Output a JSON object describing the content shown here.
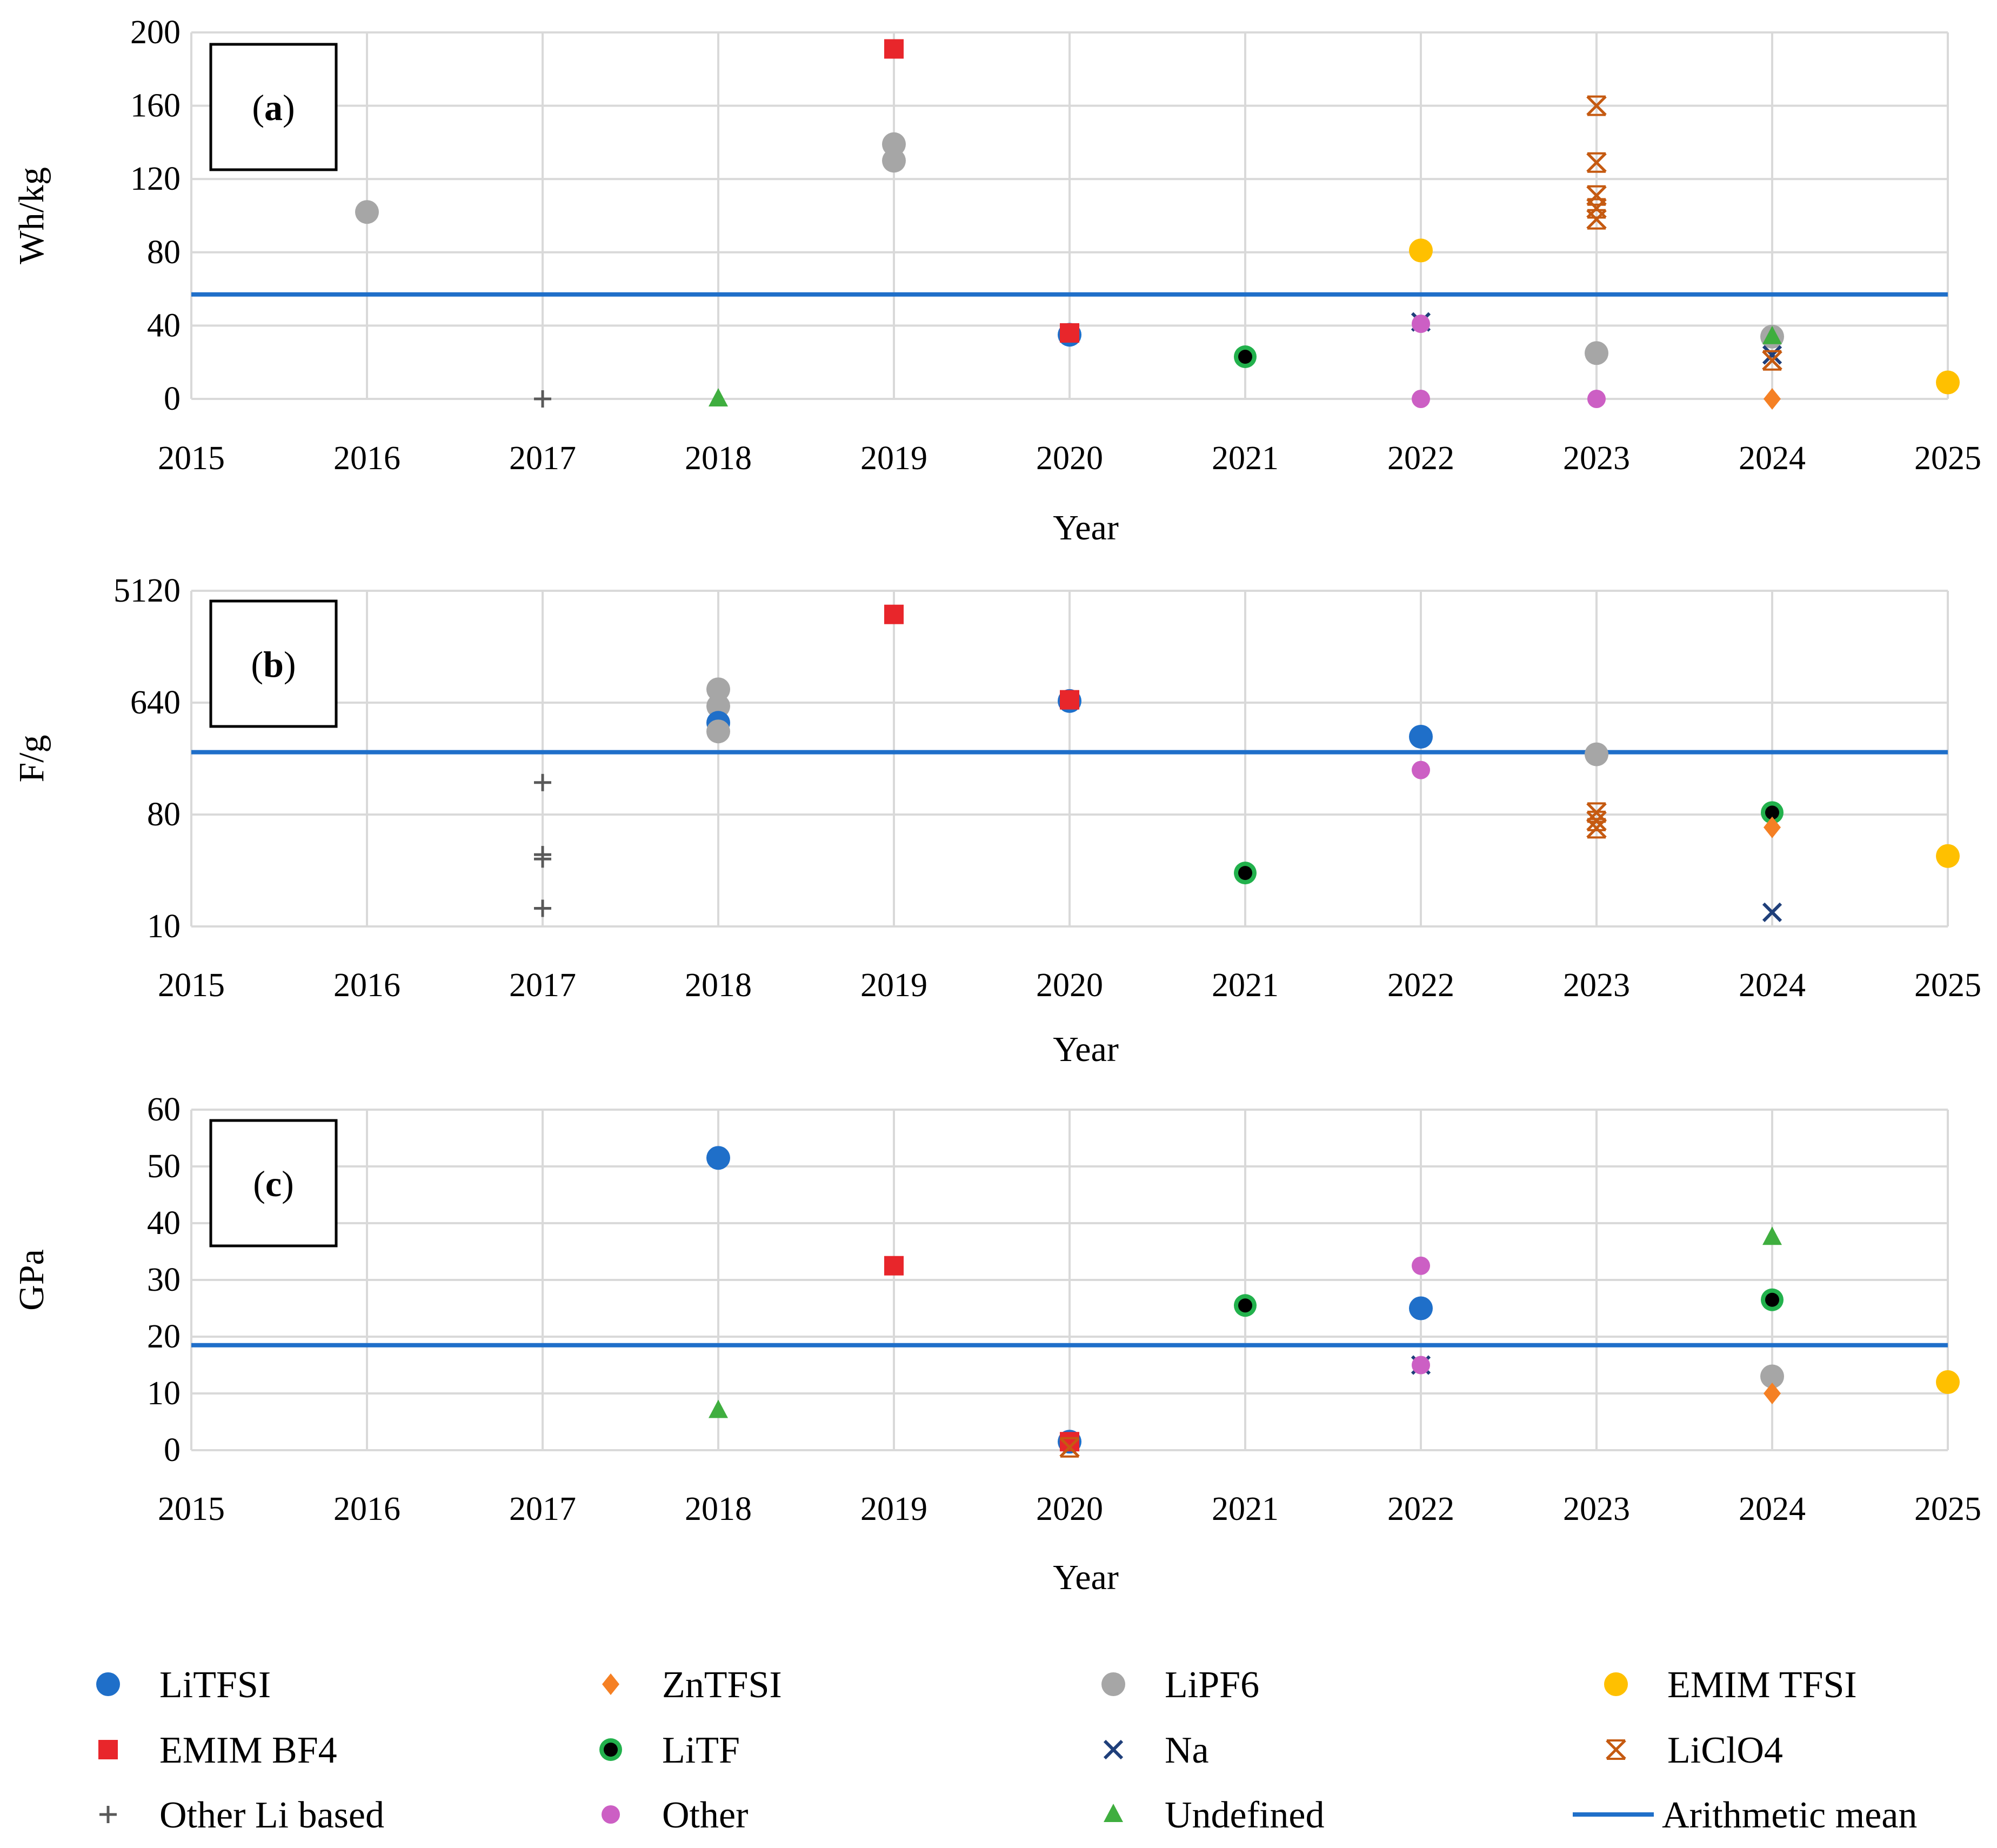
{
  "figure": {
    "mean_color": "#1f6fc9",
    "series": [
      {
        "key": "litfsi",
        "name": "LiTFSI",
        "marker": "circle",
        "color": "#1f6fc9"
      },
      {
        "key": "zntfsi",
        "name": "ZnTFSI",
        "marker": "diamond",
        "color": "#f58024"
      },
      {
        "key": "lipf6",
        "name": "LiPF6",
        "marker": "circle",
        "color": "#a6a6a6"
      },
      {
        "key": "emimtfsi",
        "name": "EMIM TFSI",
        "marker": "circle",
        "color": "#ffc000"
      },
      {
        "key": "emimbf4",
        "name": "EMIM BF4",
        "marker": "square",
        "color": "#e8262b"
      },
      {
        "key": "litf",
        "name": "LiTF",
        "marker": "circle-black",
        "color": "#22b14c"
      },
      {
        "key": "na",
        "name": "Na",
        "marker": "x",
        "color": "#1f3f7a"
      },
      {
        "key": "liclo4",
        "name": "LiClO4",
        "marker": "star",
        "color": "#c55a11"
      },
      {
        "key": "otherli",
        "name": "Other Li based",
        "marker": "plus",
        "color": "#595959"
      },
      {
        "key": "other",
        "name": "Other",
        "marker": "circle-small",
        "color": "#cc5fc4"
      },
      {
        "key": "undef",
        "name": "Undefined",
        "marker": "triangle",
        "color": "#3fae3f"
      }
    ],
    "legend_mean_label": "Arithmetic mean"
  },
  "chart_data": [
    {
      "panel_label_open": "(",
      "panel_label_letter": "a",
      "panel_label_close": ")",
      "type": "scatter",
      "xlabel": "Year",
      "ylabel": "Wh/kg",
      "xlim": [
        2015,
        2025
      ],
      "ylim": [
        0,
        200
      ],
      "yscale": "linear",
      "xticks": [
        "2015",
        "2016",
        "2017",
        "2018",
        "2019",
        "2020",
        "2021",
        "2022",
        "2023",
        "2024",
        "2025"
      ],
      "yticks": [
        0,
        40,
        80,
        120,
        160,
        200
      ],
      "ytick_labels": [
        "0",
        "40",
        "80",
        "120",
        "160",
        "200"
      ],
      "mean": 57,
      "points": [
        {
          "s": "lipf6",
          "x": 2016,
          "y": 102
        },
        {
          "s": "otherli",
          "x": 2017,
          "y": 0
        },
        {
          "s": "undef",
          "x": 2018,
          "y": 0
        },
        {
          "s": "emimbf4",
          "x": 2019,
          "y": 191
        },
        {
          "s": "lipf6",
          "x": 2019,
          "y": 139
        },
        {
          "s": "lipf6",
          "x": 2019,
          "y": 130
        },
        {
          "s": "litfsi",
          "x": 2020,
          "y": 35
        },
        {
          "s": "emimbf4",
          "x": 2020,
          "y": 36
        },
        {
          "s": "litf",
          "x": 2021,
          "y": 23
        },
        {
          "s": "emimtfsi",
          "x": 2022,
          "y": 81
        },
        {
          "s": "na",
          "x": 2022,
          "y": 42
        },
        {
          "s": "other",
          "x": 2022,
          "y": 41
        },
        {
          "s": "other",
          "x": 2022,
          "y": 0
        },
        {
          "s": "liclo4",
          "x": 2023,
          "y": 160
        },
        {
          "s": "liclo4",
          "x": 2023,
          "y": 129
        },
        {
          "s": "liclo4",
          "x": 2023,
          "y": 111
        },
        {
          "s": "liclo4",
          "x": 2023,
          "y": 104
        },
        {
          "s": "liclo4",
          "x": 2023,
          "y": 98
        },
        {
          "s": "lipf6",
          "x": 2023,
          "y": 25
        },
        {
          "s": "other",
          "x": 2023,
          "y": 0
        },
        {
          "s": "lipf6",
          "x": 2024,
          "y": 34
        },
        {
          "s": "undef",
          "x": 2024,
          "y": 34
        },
        {
          "s": "na",
          "x": 2024,
          "y": 24
        },
        {
          "s": "liclo4",
          "x": 2024,
          "y": 21
        },
        {
          "s": "zntfsi",
          "x": 2024,
          "y": 0
        },
        {
          "s": "emimtfsi",
          "x": 2025,
          "y": 9
        }
      ]
    },
    {
      "panel_label_open": "(",
      "panel_label_letter": "b",
      "panel_label_close": ")",
      "type": "scatter",
      "xlabel": "Year",
      "ylabel": "F/g",
      "xlim": [
        2015,
        2025
      ],
      "ylim": [
        10,
        5120
      ],
      "yscale": "log2",
      "xticks": [
        "2015",
        "2016",
        "2017",
        "2018",
        "2019",
        "2020",
        "2021",
        "2022",
        "2023",
        "2024",
        "2025"
      ],
      "yticks": [
        10,
        80,
        640,
        5120
      ],
      "ytick_labels": [
        "10",
        "80",
        "640",
        "5120"
      ],
      "mean": 255,
      "points": [
        {
          "s": "otherli",
          "x": 2017,
          "y": 145
        },
        {
          "s": "otherli",
          "x": 2017,
          "y": 38
        },
        {
          "s": "otherli",
          "x": 2017,
          "y": 35
        },
        {
          "s": "otherli",
          "x": 2017,
          "y": 14
        },
        {
          "s": "lipf6",
          "x": 2018,
          "y": 820
        },
        {
          "s": "lipf6",
          "x": 2018,
          "y": 600
        },
        {
          "s": "litfsi",
          "x": 2018,
          "y": 440
        },
        {
          "s": "lipf6",
          "x": 2018,
          "y": 375
        },
        {
          "s": "emimbf4",
          "x": 2019,
          "y": 3300
        },
        {
          "s": "litfsi",
          "x": 2020,
          "y": 660
        },
        {
          "s": "emimbf4",
          "x": 2020,
          "y": 675
        },
        {
          "s": "litf",
          "x": 2021,
          "y": 27
        },
        {
          "s": "litfsi",
          "x": 2022,
          "y": 340
        },
        {
          "s": "other",
          "x": 2022,
          "y": 183
        },
        {
          "s": "lipf6",
          "x": 2023,
          "y": 245
        },
        {
          "s": "liclo4",
          "x": 2023,
          "y": 83
        },
        {
          "s": "liclo4",
          "x": 2023,
          "y": 71
        },
        {
          "s": "liclo4",
          "x": 2023,
          "y": 62
        },
        {
          "s": "litf",
          "x": 2024,
          "y": 83
        },
        {
          "s": "zntfsi",
          "x": 2024,
          "y": 63
        },
        {
          "s": "na",
          "x": 2024,
          "y": 13
        },
        {
          "s": "emimtfsi",
          "x": 2025,
          "y": 37
        }
      ]
    },
    {
      "panel_label_open": "(",
      "panel_label_letter": "c",
      "panel_label_close": ")",
      "type": "scatter",
      "xlabel": "Year",
      "ylabel": "GPa",
      "xlim": [
        2015,
        2025
      ],
      "ylim": [
        0,
        60
      ],
      "yscale": "linear",
      "xticks": [
        "2015",
        "2016",
        "2017",
        "2018",
        "2019",
        "2020",
        "2021",
        "2022",
        "2023",
        "2024",
        "2025"
      ],
      "yticks": [
        0,
        10,
        20,
        30,
        40,
        50,
        60
      ],
      "ytick_labels": [
        "0",
        "10",
        "20",
        "30",
        "40",
        "50",
        "60"
      ],
      "mean": 18.5,
      "points": [
        {
          "s": "litfsi",
          "x": 2018,
          "y": 51.5
        },
        {
          "s": "undef",
          "x": 2018,
          "y": 7
        },
        {
          "s": "emimbf4",
          "x": 2019,
          "y": 32.5
        },
        {
          "s": "litfsi",
          "x": 2020,
          "y": 1.5
        },
        {
          "s": "emimbf4",
          "x": 2020,
          "y": 1.5
        },
        {
          "s": "liclo4",
          "x": 2020,
          "y": 0.5
        },
        {
          "s": "litf",
          "x": 2021,
          "y": 25.5
        },
        {
          "s": "other",
          "x": 2022,
          "y": 32.5
        },
        {
          "s": "litfsi",
          "x": 2022,
          "y": 25
        },
        {
          "s": "na",
          "x": 2022,
          "y": 15
        },
        {
          "s": "other",
          "x": 2022,
          "y": 15
        },
        {
          "s": "undef",
          "x": 2024,
          "y": 37.5
        },
        {
          "s": "litf",
          "x": 2024,
          "y": 26.5
        },
        {
          "s": "lipf6",
          "x": 2024,
          "y": 13
        },
        {
          "s": "zntfsi",
          "x": 2024,
          "y": 10
        },
        {
          "s": "emimtfsi",
          "x": 2025,
          "y": 12
        }
      ]
    }
  ]
}
